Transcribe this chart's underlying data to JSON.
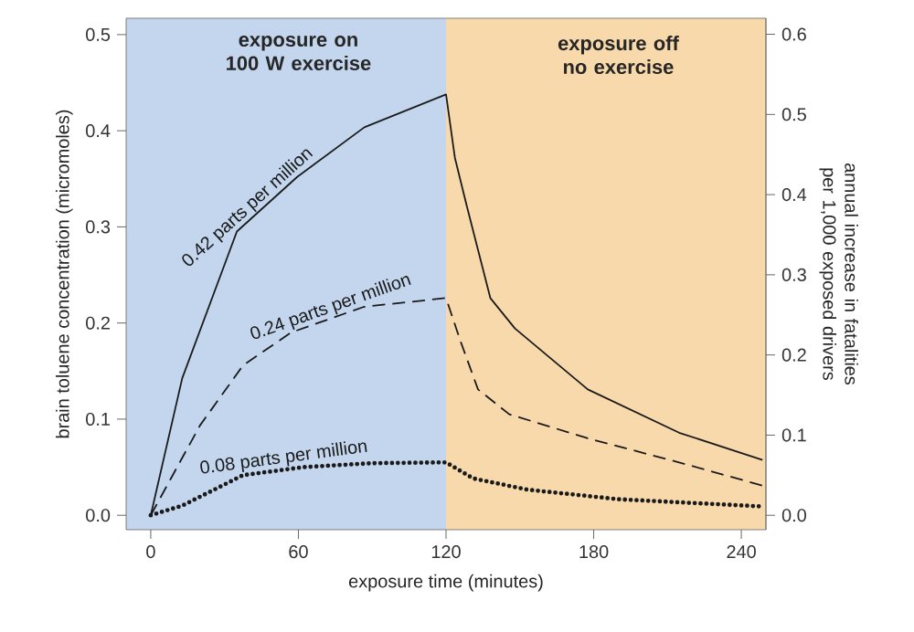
{
  "chart_data": {
    "type": "line",
    "xlabel": "exposure time (minutes)",
    "ylabel": "brain toluene concentration (micromoles)",
    "y2label": "annual increase in fatalities per 1,000 exposed drivers",
    "xlim": [
      -10,
      250
    ],
    "xticks": [
      0,
      60,
      120,
      180,
      240
    ],
    "ylim": [
      -0.015,
      0.517
    ],
    "yticks": [
      {
        "value": 0,
        "label": "0.0"
      },
      0.1,
      0.2,
      0.3,
      0.4,
      0.5
    ],
    "y2lim": [
      -0.018,
      0.62
    ],
    "y2ticks": [
      {
        "value": 0,
        "label": "0.0"
      },
      0.1,
      0.2,
      0.3,
      0.4,
      0.5,
      0.6
    ],
    "bands": [
      {
        "axis": "x",
        "from": -10,
        "to": 120,
        "label": "exposure on 100 W exercise",
        "color": "#c3d6ee"
      },
      {
        "axis": "x",
        "from": 120,
        "to": 250,
        "label": "exposure off no exercise",
        "color": "#f8d9ab"
      }
    ],
    "series": [
      {
        "name": "0.42 parts per million",
        "color": "#1a1a1a",
        "line_style": "solid",
        "axis": "y2",
        "x": [
          0,
          12.8,
          35,
          59.5,
          86.8,
          120,
          123.6,
          128.5,
          138,
          148,
          177.6,
          214.7,
          248.6
        ],
        "values": [
          0,
          0.171,
          0.354,
          0.422,
          0.484,
          0.525,
          0.446,
          0.385,
          0.271,
          0.233,
          0.157,
          0.103,
          0.069
        ]
      },
      {
        "name": "0.24 parts per million",
        "color": "#1a1a1a",
        "line_style": "dashed",
        "axis": "y2",
        "x": [
          0,
          20,
          37.5,
          57,
          86.6,
          120,
          125.9,
          133,
          145.7,
          177.6,
          214.7,
          248.6
        ],
        "values": [
          0,
          0.112,
          0.187,
          0.228,
          0.26,
          0.271,
          0.217,
          0.157,
          0.126,
          0.096,
          0.066,
          0.037
        ]
      },
      {
        "name": "0.08 parts per million",
        "color": "#1a1a1a",
        "line_style": "dotted",
        "axis": "y2",
        "x": [
          0,
          12.8,
          37.5,
          62,
          90,
          120,
          131,
          153,
          190,
          248.6
        ],
        "values": [
          0,
          0.012,
          0.05,
          0.06,
          0.065,
          0.066,
          0.046,
          0.032,
          0.02,
          0.011
        ]
      }
    ]
  }
}
